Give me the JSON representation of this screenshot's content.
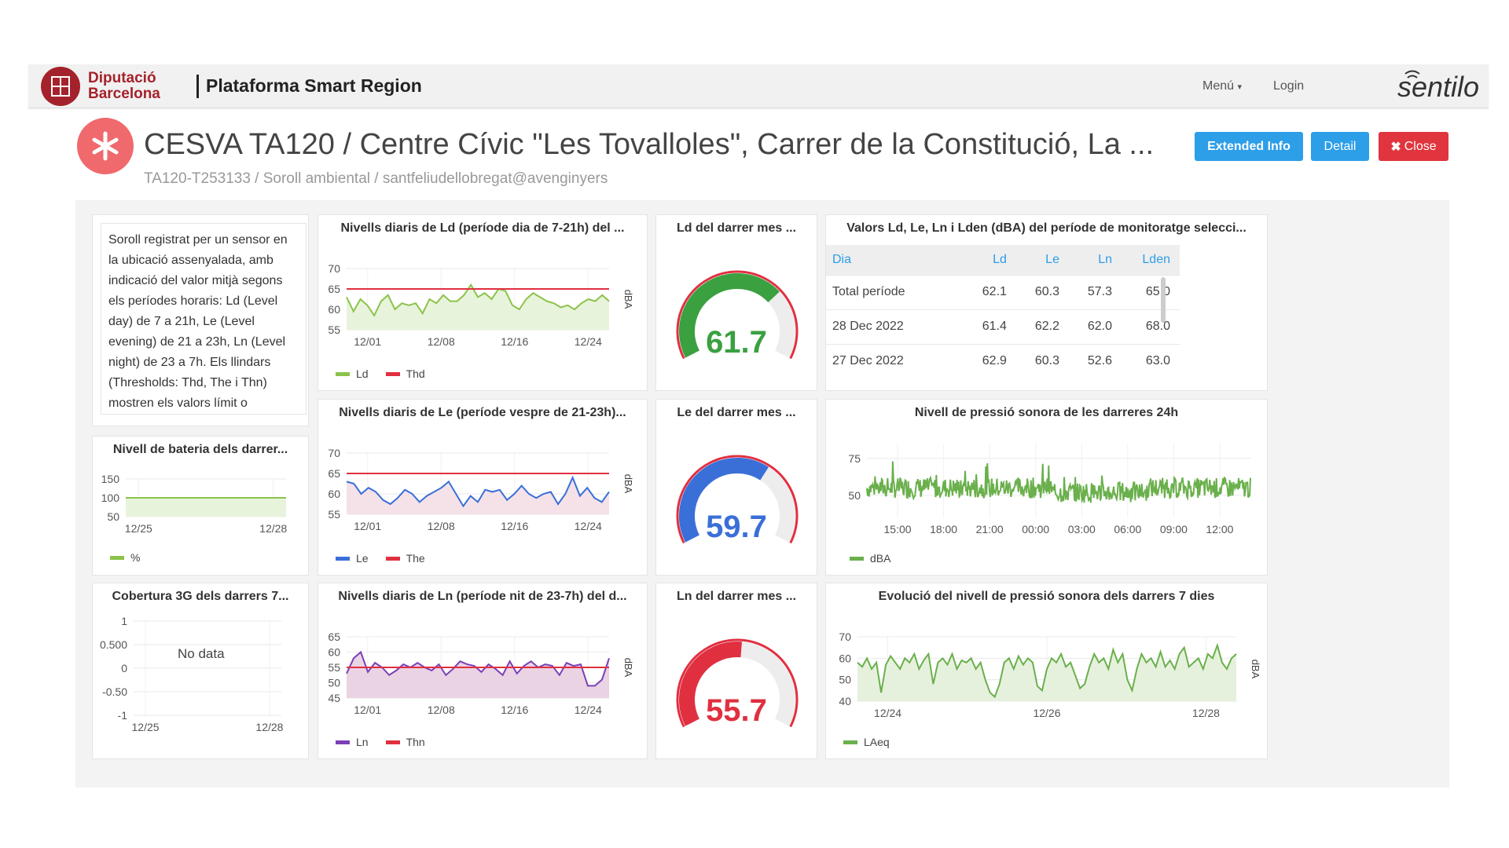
{
  "navbar": {
    "logo_line1": "Diputació",
    "logo_line2": "Barcelona",
    "brand": "Plataforma Smart Region",
    "menu_label": "Menú",
    "login_label": "Login",
    "sentilo_logo": "sentilo"
  },
  "header": {
    "title": "CESVA TA120 / Centre Cívic \"Les Tovalloles\", Carrer de la Constitució, La ...",
    "subtitle": "TA120-T253133 / Soroll ambiental / santfeliudellobregat@avenginyers",
    "icon": "asterisk-icon",
    "buttons": {
      "extended": "Extended Info",
      "detail": "Detail",
      "close": "Close"
    }
  },
  "colors": {
    "accent": "#2d9ee8",
    "danger": "#e0353e",
    "brand": "#a4222b",
    "green": "#6ab04c",
    "blue": "#3a6fd8",
    "purple": "#7b3fb8",
    "red": "#e03040"
  },
  "description": "Soroll registrat per un sensor en la ubicació assenyalada, amb indicació del valor mitjà segons els períodes horaris: Ld (Level day) de 7 a 21h, Le (Level evening) de 21 a 23h, Ln (Level night) de 23 a 7h. Els llindars (Thresholds: Thd, The i Thn) mostren els valors límit o objectius de qualitat del soroll.",
  "battery": {
    "title": "Nivell de bateria dels darrer...",
    "legend": "%"
  },
  "coverage": {
    "title": "Cobertura 3G dels darrers 7...",
    "no_data": "No data"
  },
  "gauges": [
    {
      "title": "Ld del darrer mes ...",
      "value": "61.7",
      "fraction": 0.7,
      "color": "#3aa040"
    },
    {
      "title": "Le del darrer mes ...",
      "value": "59.7",
      "fraction": 0.64,
      "color": "#3a6fd8"
    },
    {
      "title": "Ln del darrer mes ...",
      "value": "55.7",
      "fraction": 0.52,
      "color": "#e03040"
    }
  ],
  "table": {
    "title": "Valors Ld, Le, Ln i Lden (dBA) del període de monitoratge selecci...",
    "headers": [
      "Dia",
      "Ld",
      "Le",
      "Ln",
      "Lden"
    ],
    "rows": [
      [
        "Total període",
        "62.1",
        "60.3",
        "57.3",
        "65.0"
      ],
      [
        "28 Dec 2022",
        "61.4",
        "62.2",
        "62.0",
        "68.0"
      ],
      [
        "27 Dec 2022",
        "62.9",
        "60.3",
        "52.6",
        "63.0"
      ]
    ]
  },
  "chart_data": [
    {
      "id": "ld",
      "type": "line",
      "title": "Nivells diaris de Ld (període dia de 7-21h) del ...",
      "ylabel": "dBA",
      "ylim": [
        55,
        70
      ],
      "yticks": [
        70,
        65,
        60,
        55
      ],
      "xticks": [
        "12/01",
        "12/08",
        "12/16",
        "12/24"
      ],
      "series": [
        {
          "name": "Ld",
          "color": "#8bc34a",
          "fill": "#e8f3dc",
          "values": [
            63,
            59.5,
            62.5,
            61,
            58.5,
            62,
            63.5,
            60,
            61.5,
            61,
            61.5,
            59,
            62.5,
            61.5,
            63.5,
            62,
            62,
            63.5,
            66,
            63,
            64,
            62.5,
            65,
            64.5,
            61,
            60,
            62.5,
            64,
            63,
            62,
            61.5,
            60.5,
            61,
            60,
            61.5,
            62.5,
            62,
            63.5,
            62
          ]
        },
        {
          "name": "Thd",
          "color": "#e03040",
          "values": [
            65
          ]
        }
      ]
    },
    {
      "id": "le",
      "type": "line",
      "title": "Nivells diaris de Le (període vespre de 21-23h)...",
      "ylabel": "dBA",
      "ylim": [
        55,
        70
      ],
      "yticks": [
        70,
        65,
        60,
        55
      ],
      "xticks": [
        "12/01",
        "12/08",
        "12/16",
        "12/24"
      ],
      "series": [
        {
          "name": "Le",
          "color": "#3a6fd8",
          "fill": "#f5e1e8",
          "values": [
            63,
            62.5,
            60,
            61.5,
            60.5,
            58.5,
            57.5,
            59,
            61,
            60,
            58,
            59.5,
            60.5,
            61.5,
            63,
            60,
            57,
            59.5,
            58,
            61,
            60.5,
            61,
            58.5,
            60,
            62,
            60,
            59,
            60,
            60.5,
            57.5,
            60,
            64,
            59.5,
            61.5,
            59,
            58,
            60.5
          ]
        },
        {
          "name": "The",
          "color": "#e03040",
          "values": [
            65
          ]
        }
      ]
    },
    {
      "id": "ln",
      "type": "line",
      "title": "Nivells diaris de Ln (període nit de 23-7h) del d...",
      "ylabel": "dBA",
      "ylim": [
        45,
        65
      ],
      "yticks": [
        65,
        60,
        55,
        50,
        45
      ],
      "xticks": [
        "12/01",
        "12/08",
        "12/16",
        "12/24"
      ],
      "series": [
        {
          "name": "Ln",
          "color": "#7b3fb8",
          "fill": "#ead3e3",
          "values": [
            53,
            58,
            60,
            53.5,
            56.5,
            55,
            52.5,
            54,
            56,
            55,
            56.5,
            55,
            54,
            56,
            52.5,
            54.5,
            57,
            56,
            55.5,
            53.5,
            56,
            54.5,
            52.5,
            57,
            53,
            55.5,
            57,
            55,
            56,
            55.5,
            52.5,
            56.5,
            55.5,
            56,
            49,
            49,
            51,
            58
          ]
        },
        {
          "name": "Thn",
          "color": "#e03040",
          "values": [
            55
          ]
        }
      ]
    },
    {
      "id": "battery",
      "type": "line",
      "title": "Nivell de bateria dels darrer...",
      "ylim": [
        50,
        150
      ],
      "yticks": [
        150,
        100,
        50
      ],
      "xticks": [
        "12/25",
        "12/28"
      ],
      "series": [
        {
          "name": "%",
          "color": "#8bc34a",
          "fill": "#e8f3dc",
          "values": [
            100,
            100,
            100,
            100,
            100,
            100
          ]
        }
      ]
    },
    {
      "id": "coverage",
      "type": "line",
      "title": "Cobertura 3G dels darrers 7...",
      "ylim": [
        -1,
        1
      ],
      "yticks": [
        "1",
        "0.500",
        "0",
        "-0.50",
        "-1"
      ],
      "xticks": [
        "12/25",
        "12/28"
      ],
      "series": []
    },
    {
      "id": "last24",
      "type": "line",
      "title": "Nivell de pressió sonora de les darreres 24h",
      "ylim": [
        35,
        85
      ],
      "yticks": [
        75,
        50
      ],
      "xticks": [
        "15:00",
        "18:00",
        "21:00",
        "00:00",
        "03:00",
        "06:00",
        "09:00",
        "12:00"
      ],
      "series": [
        {
          "name": "dBA",
          "color": "#6ab04c",
          "values": []
        }
      ]
    },
    {
      "id": "week",
      "type": "area",
      "title": "Evolució del nivell de pressió sonora dels darrers 7 dies",
      "ylabel": "dBA",
      "ylim": [
        40,
        70
      ],
      "yticks": [
        70,
        60,
        50,
        40
      ],
      "xticks": [
        "12/24",
        "12/26",
        "12/28"
      ],
      "series": [
        {
          "name": "LAeq",
          "color": "#6ab04c",
          "fill": "#e6f1dd",
          "values": [
            58,
            56,
            60,
            55,
            58,
            44,
            57,
            61,
            58,
            55,
            60,
            58,
            62,
            55,
            59,
            62,
            48,
            58,
            60,
            57,
            62,
            55,
            59,
            58,
            60,
            55,
            58,
            50,
            44,
            42,
            48,
            58,
            60,
            55,
            61,
            57,
            60,
            58,
            47,
            45,
            55,
            60,
            58,
            62,
            56,
            58,
            52,
            46,
            48,
            56,
            62,
            58,
            60,
            55,
            64,
            58,
            62,
            50,
            45,
            55,
            62,
            58,
            60,
            56,
            63,
            56,
            59,
            55,
            62,
            65,
            56,
            58,
            60,
            55,
            62,
            60,
            66,
            58,
            55,
            60,
            62
          ]
        }
      ]
    }
  ]
}
